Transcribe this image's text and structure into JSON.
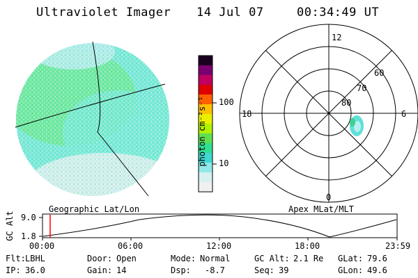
{
  "header": {
    "instrument": "Ultraviolet Imager",
    "date": "14 Jul 07",
    "time": "00:34:49 UT"
  },
  "colorbar": {
    "unit_label": "photon cm⁻²s⁻¹",
    "ticks": [
      "100",
      "10"
    ],
    "scale": "log",
    "colors": [
      "#1a0020",
      "#7a0070",
      "#c00060",
      "#e00000",
      "#ff6000",
      "#ffc000",
      "#e8f000",
      "#b0f000",
      "#60e050",
      "#30e090",
      "#40d8d0",
      "#90e8e8",
      "#d8f0f0",
      "#f0f0f0"
    ]
  },
  "geo_view": {
    "label": "Geographic Lat/Lon",
    "fill_colors": [
      "#6ee89a",
      "#7ae8d8",
      "#b4ecec",
      "#d8eeee"
    ]
  },
  "polar_view": {
    "label": "Apex MLat/MLT",
    "mlt_labels": {
      "top": "12",
      "left": "18",
      "right": "6",
      "bottom": "0"
    },
    "lat_labels": [
      "60",
      "70",
      "80"
    ]
  },
  "altitude_plot": {
    "ylabel": "GC Alt",
    "y_ticks": [
      "9.0",
      "1.8"
    ],
    "x_ticks": [
      "00:00",
      "06:00",
      "12:00",
      "18:00",
      "23:59"
    ],
    "marker_color": "#ff0000"
  },
  "info": {
    "filter_label": "Flt:",
    "filter_value": "LBHL",
    "ip_label": "IP:",
    "ip_value": "36.0",
    "door_label": "Door:",
    "door_value": "Open",
    "gain_label": "Gain:",
    "gain_value": "14",
    "mode_label": "Mode:",
    "mode_value": "Normal",
    "dsp_label": "Dsp:",
    "dsp_value": "-8.7",
    "gcalt_label": "GC Alt:",
    "gcalt_value": "2.1 Re",
    "seq_label": "Seq:",
    "seq_value": "39",
    "glat_label": "GLat:",
    "glat_value": "79.6",
    "glon_label": "GLon:",
    "glon_value": "49.6"
  }
}
